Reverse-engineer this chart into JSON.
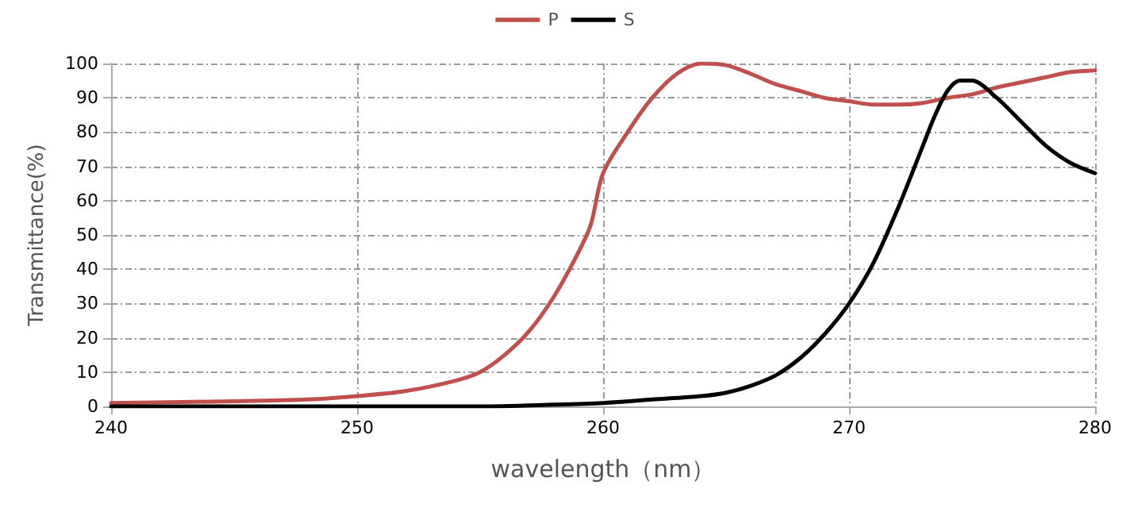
{
  "chart_data": {
    "type": "line",
    "xlabel": "wavelength（nm）",
    "ylabel": "Transmittance(%)",
    "xlim": [
      240,
      280
    ],
    "xticks": [
      240,
      250,
      260,
      270,
      280
    ],
    "ylim": [
      0,
      100
    ],
    "yticks": [
      0,
      10,
      20,
      30,
      40,
      50,
      60,
      70,
      80,
      90,
      100
    ],
    "grid": true,
    "legend": "top",
    "marker": "none",
    "line_style": "solid",
    "series": [
      {
        "name": "P",
        "color": "#c0504d",
        "x": [
          240,
          245,
          248,
          250,
          252,
          254,
          255,
          256,
          257,
          258,
          259,
          259.5,
          260,
          261,
          262,
          263,
          264,
          265,
          266,
          267,
          268,
          269,
          270,
          271,
          272,
          273,
          274,
          275,
          276,
          277,
          278,
          279,
          280
        ],
        "values": [
          1,
          1.5,
          2,
          3,
          4.5,
          7.5,
          10,
          15,
          22,
          32,
          45,
          53,
          68,
          80,
          90,
          97,
          100,
          99.5,
          97,
          94,
          92,
          90,
          89,
          88,
          88,
          88.5,
          90,
          91,
          93,
          94.5,
          96,
          97.5,
          98
        ]
      },
      {
        "name": "S",
        "color": "#000000",
        "x": [
          240,
          250,
          255,
          258,
          260,
          262,
          264,
          265,
          266,
          267,
          268,
          269,
          270,
          271,
          272,
          273,
          273.5,
          274,
          274.5,
          275,
          276,
          277,
          278,
          279,
          280
        ],
        "values": [
          0,
          0,
          0,
          0.5,
          1,
          2,
          3,
          4,
          6,
          9,
          14,
          21,
          30,
          42,
          58,
          76,
          85,
          92,
          95,
          95,
          90,
          83,
          76,
          71,
          68
        ]
      }
    ]
  }
}
